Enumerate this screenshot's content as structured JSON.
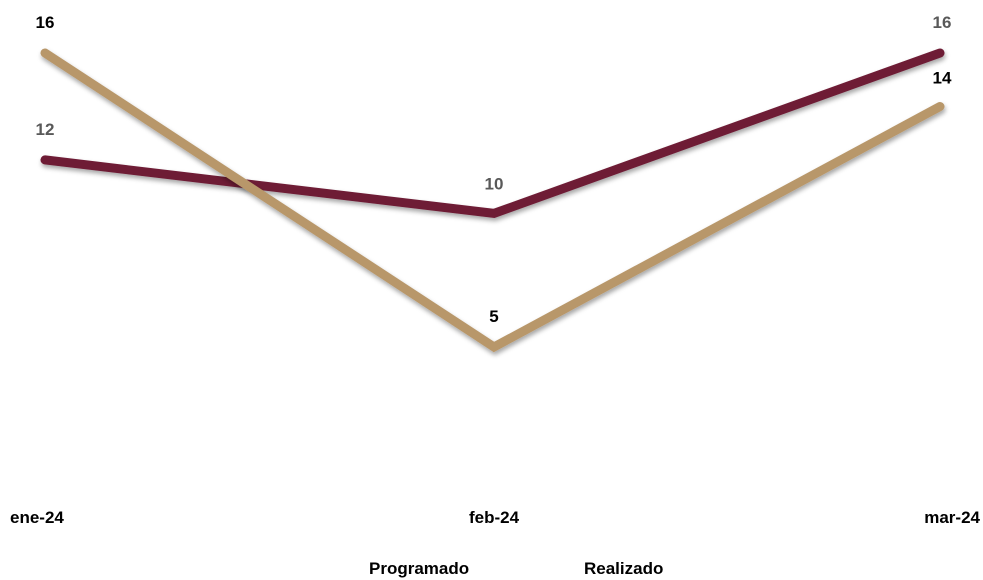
{
  "chart_data": {
    "type": "line",
    "categories": [
      "ene-24",
      "feb-24",
      "mar-24"
    ],
    "series": [
      {
        "name": "Programado",
        "values": [
          12,
          10,
          16
        ],
        "color": "#6E1B35",
        "label_colors": [
          "#595959",
          "#595959",
          "#595959"
        ]
      },
      {
        "name": "Realizado",
        "values": [
          16,
          5,
          14
        ],
        "color": "#B8976A",
        "label_colors": [
          "#000000",
          "#000000",
          "#000000"
        ]
      }
    ],
    "ylim": [
      0,
      16
    ],
    "grid": false,
    "legend_position": "bottom",
    "title": "",
    "xlabel": "",
    "ylabel": ""
  }
}
